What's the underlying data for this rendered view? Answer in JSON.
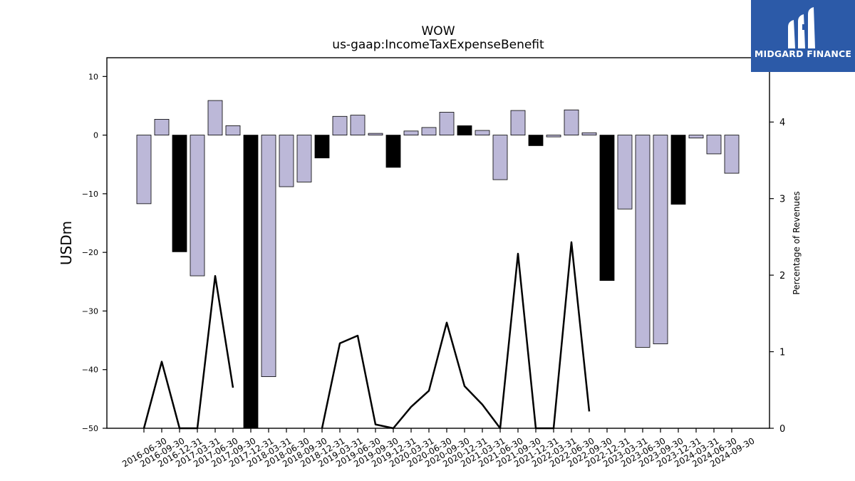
{
  "brand": {
    "name": "MIDGARD FINANCE",
    "logo_icon": "midgard-m-icon",
    "bg_color": "#2c5aa8"
  },
  "chart_data": {
    "type": "bar",
    "title": "WOW",
    "subtitle": "us-gaap:IncomeTaxExpenseBenefit",
    "ylabel": "USDm",
    "y2label": "Percentage of Revenues",
    "ylim": [
      -50,
      13.2
    ],
    "y2lim": [
      0,
      4.84
    ],
    "yticks": [
      10,
      0,
      -10,
      -20,
      -30,
      -40,
      -50
    ],
    "y2ticks": [
      0,
      1,
      2,
      3,
      4
    ],
    "bar_colors": {
      "default": "#bcb8d8",
      "highlight": "#000000"
    },
    "categories": [
      "2016-06-30",
      "2016-09-30",
      "2016-12-31",
      "2017-03-31",
      "2017-06-30",
      "2017-09-30",
      "2017-12-31",
      "2018-03-31",
      "2018-06-30",
      "2018-09-30",
      "2018-12-31",
      "2019-03-31",
      "2019-06-30",
      "2019-09-30",
      "2019-12-31",
      "2020-03-31",
      "2020-06-30",
      "2020-09-30",
      "2020-12-31",
      "2021-03-31",
      "2021-06-30",
      "2021-09-30",
      "2021-12-31",
      "2022-03-31",
      "2022-06-30",
      "2022-09-30",
      "2022-12-31",
      "2023-03-31",
      "2023-06-30",
      "2023-09-30",
      "2023-12-31",
      "2024-03-31",
      "2024-06-30",
      "2024-09-30"
    ],
    "values": [
      -11.7,
      2.7,
      -19.9,
      -24.0,
      5.9,
      1.6,
      -50.0,
      -41.2,
      -8.8,
      -8.0,
      -3.9,
      3.2,
      3.4,
      0.3,
      -5.5,
      0.7,
      1.3,
      3.9,
      1.6,
      0.8,
      -7.6,
      4.2,
      -1.8,
      -0.3,
      4.3,
      0.4,
      -24.8,
      -12.6,
      -36.2,
      -35.6,
      -11.8,
      -0.5,
      -3.2,
      -6.5
    ],
    "highlight": [
      false,
      false,
      true,
      false,
      false,
      false,
      true,
      false,
      false,
      false,
      true,
      false,
      false,
      false,
      true,
      false,
      false,
      false,
      true,
      false,
      false,
      false,
      true,
      false,
      false,
      false,
      true,
      false,
      false,
      false,
      true,
      false,
      false,
      false
    ],
    "line_series": {
      "values": [
        0,
        0.87,
        0,
        0,
        1.99,
        0.53,
        null,
        null,
        null,
        null,
        0,
        1.11,
        1.21,
        0.05,
        0,
        0.28,
        0.49,
        1.38,
        0.55,
        0.31,
        0,
        2.28,
        0,
        0,
        2.43,
        0.22,
        null,
        null,
        null,
        null,
        null,
        null,
        null,
        null
      ],
      "color": "#000000"
    }
  }
}
